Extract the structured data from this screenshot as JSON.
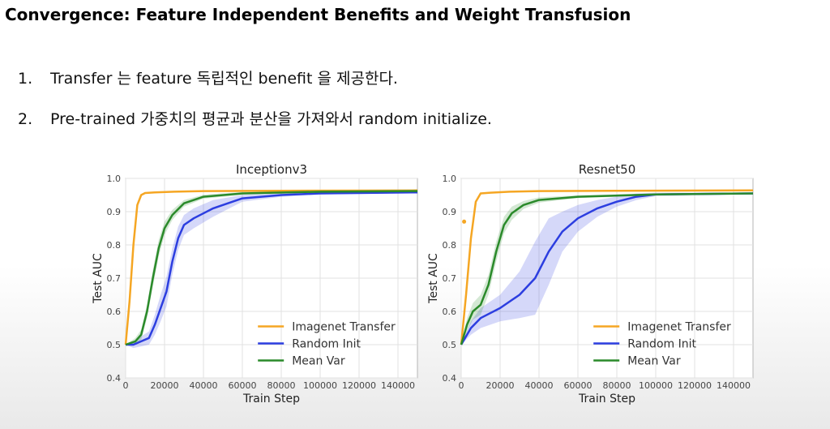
{
  "slide": {
    "title": "Convergence: Feature Independent Benefits and Weight Transfusion",
    "bullets": [
      {
        "number": "1.",
        "text": "Transfer 는 feature 독립적인 benefit 을 제공한다."
      },
      {
        "number": "2.",
        "text": "Pre-trained 가중치의 평균과 분산을 가져와서 random initialize."
      }
    ]
  },
  "chart_data": [
    {
      "type": "line",
      "title": "Inceptionv3",
      "xlabel": "Train Step",
      "ylabel": "Test AUC",
      "xlim": [
        0,
        150000
      ],
      "ylim": [
        0.4,
        1.0
      ],
      "xticks": [
        "0",
        "20000",
        "40000",
        "60000",
        "80000",
        "100000",
        "120000",
        "140000"
      ],
      "yticks": [
        "0.4",
        "0.5",
        "0.6",
        "0.7",
        "0.8",
        "0.9",
        "1.0"
      ],
      "grid": true,
      "legend": "bottom-right",
      "series": [
        {
          "name": "Imagenet Transfer",
          "color": "#f5a623",
          "x": [
            0,
            2000,
            4000,
            6000,
            8000,
            10000,
            15000,
            25000,
            40000,
            80000,
            150000
          ],
          "y": [
            0.5,
            0.63,
            0.8,
            0.92,
            0.95,
            0.956,
            0.958,
            0.96,
            0.962,
            0.963,
            0.964
          ]
        },
        {
          "name": "Random Init",
          "color": "#2c3ee0",
          "x": [
            0,
            4000,
            8000,
            12000,
            15000,
            18000,
            21000,
            24000,
            27000,
            30000,
            35000,
            45000,
            60000,
            80000,
            100000,
            150000
          ],
          "y": [
            0.5,
            0.5,
            0.51,
            0.52,
            0.56,
            0.61,
            0.66,
            0.75,
            0.82,
            0.86,
            0.88,
            0.91,
            0.94,
            0.95,
            0.955,
            0.958
          ],
          "band": [
            0,
            0.01,
            0.015,
            0.02,
            0.03,
            0.04,
            0.045,
            0.04,
            0.035,
            0.03,
            0.03,
            0.025,
            0.01,
            0.005,
            0.003,
            0.002
          ]
        },
        {
          "name": "Mean Var",
          "color": "#2a8a2a",
          "x": [
            0,
            5000,
            8000,
            11000,
            14000,
            17000,
            20000,
            24000,
            30000,
            40000,
            60000,
            100000,
            150000
          ],
          "y": [
            0.5,
            0.51,
            0.53,
            0.6,
            0.7,
            0.79,
            0.85,
            0.89,
            0.925,
            0.945,
            0.955,
            0.96,
            0.962
          ],
          "band": [
            0,
            0.01,
            0.015,
            0.02,
            0.025,
            0.025,
            0.02,
            0.015,
            0.01,
            0.006,
            0.004,
            0.002,
            0.002
          ]
        }
      ]
    },
    {
      "type": "line",
      "title": "Resnet50",
      "xlabel": "Train Step",
      "ylabel": "Test AUC",
      "xlim": [
        0,
        150000
      ],
      "ylim": [
        0.4,
        1.0
      ],
      "xticks": [
        "0",
        "20000",
        "40000",
        "60000",
        "80000",
        "100000",
        "120000",
        "140000"
      ],
      "yticks": [
        "0.4",
        "0.5",
        "0.6",
        "0.7",
        "0.8",
        "0.9",
        "1.0"
      ],
      "grid": true,
      "legend": "bottom-right",
      "series": [
        {
          "name": "Imagenet Transfer",
          "color": "#f5a623",
          "x": [
            0,
            2500,
            5000,
            7500,
            10000,
            15000,
            25000,
            40000,
            80000,
            150000
          ],
          "y": [
            0.5,
            0.65,
            0.82,
            0.93,
            0.955,
            0.957,
            0.96,
            0.962,
            0.963,
            0.964
          ],
          "markers": [
            {
              "x": 1500,
              "y": 0.87
            }
          ]
        },
        {
          "name": "Random Init",
          "color": "#2c3ee0",
          "x": [
            0,
            5000,
            10000,
            20000,
            30000,
            38000,
            45000,
            52000,
            60000,
            70000,
            80000,
            90000,
            100000,
            150000
          ],
          "y": [
            0.5,
            0.55,
            0.58,
            0.61,
            0.65,
            0.7,
            0.78,
            0.84,
            0.88,
            0.91,
            0.93,
            0.945,
            0.952,
            0.955
          ],
          "band": [
            0,
            0.02,
            0.03,
            0.04,
            0.07,
            0.11,
            0.1,
            0.06,
            0.04,
            0.025,
            0.015,
            0.01,
            0.005,
            0.003
          ]
        },
        {
          "name": "Mean Var",
          "color": "#2a8a2a",
          "x": [
            0,
            3000,
            6000,
            10000,
            14000,
            18000,
            22000,
            26000,
            32000,
            40000,
            60000,
            100000,
            150000
          ],
          "y": [
            0.5,
            0.56,
            0.6,
            0.62,
            0.68,
            0.78,
            0.86,
            0.895,
            0.92,
            0.935,
            0.945,
            0.952,
            0.955
          ],
          "band": [
            0,
            0.02,
            0.025,
            0.03,
            0.03,
            0.03,
            0.025,
            0.02,
            0.012,
            0.008,
            0.004,
            0.003,
            0.002
          ]
        }
      ]
    }
  ]
}
